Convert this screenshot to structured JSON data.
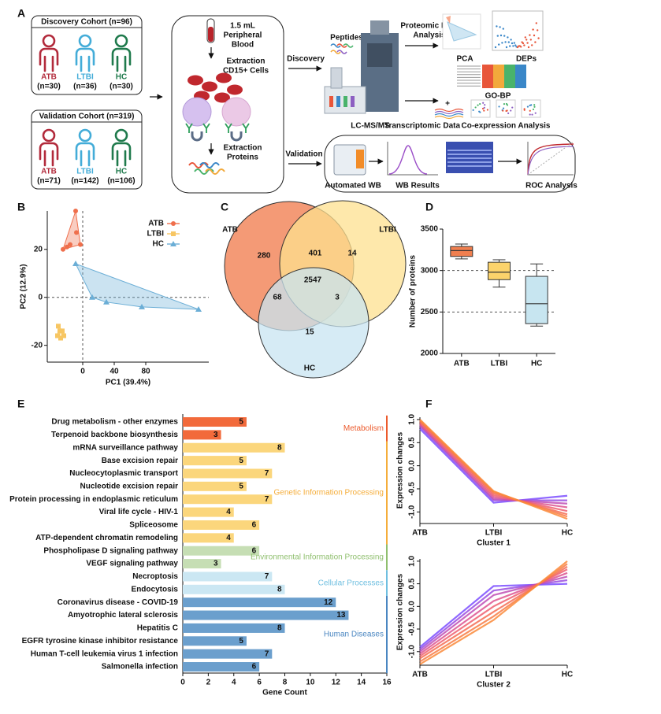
{
  "diagram": {
    "label": "A",
    "discovery_cohort": {
      "title": "Discovery Cohort (n=96)",
      "groups": [
        {
          "name": "ATB",
          "n": "(n=30)"
        },
        {
          "name": "LTBI",
          "n": "(n=36)"
        },
        {
          "name": "HC",
          "n": "(n=30)"
        }
      ]
    },
    "validation_cohort": {
      "title": "Validation Cohort (n=319)",
      "groups": [
        {
          "name": "ATB",
          "n": "(n=71)"
        },
        {
          "name": "LTBI",
          "n": "(n=142)"
        },
        {
          "name": "HC",
          "n": "(n=106)"
        }
      ]
    },
    "workflow": {
      "blood": [
        "1.5 mL",
        "Peripheral",
        "Blood"
      ],
      "cells": [
        "Extraction",
        "CD15+ Cells"
      ],
      "proteins": [
        "Extraction",
        "Proteins"
      ]
    },
    "discovery_label": "Discovery",
    "validation_label": "Validation",
    "discovery": {
      "peptides": "Peptides",
      "instrument": "LC-MS/MS",
      "analysis": [
        "Proteomic Data",
        "Analysis"
      ],
      "pca": "PCA",
      "deps": "DEPs",
      "gobp": "GO-BP",
      "transcriptomic": "Transcriptomic Data",
      "coexpression": "Co-expression Analysis"
    },
    "validation": {
      "wb": "Automated WB",
      "wb_results": "WB Results",
      "roc": "ROC Analysis"
    }
  },
  "chart_data": [
    {
      "type": "scatter",
      "panel": "B",
      "xlabel": "PC1 (39.4%)",
      "ylabel": "PC2 (12.9%)",
      "xlim": [
        -45,
        160
      ],
      "ylim": [
        -27,
        36
      ],
      "xticks": [
        0,
        40,
        80
      ],
      "yticks": [
        20,
        0,
        -20
      ],
      "legend": "top-right",
      "series": [
        {
          "name": "ATB",
          "color": "#ef6f4c",
          "marker": "circle",
          "x": [
            -9,
            -8,
            -3,
            -25,
            -16,
            -20
          ],
          "values": [
            36,
            27,
            22,
            20,
            22,
            21
          ]
        },
        {
          "name": "LTBI",
          "color": "#f7c663",
          "marker": "square",
          "x": [
            -31,
            -29,
            -32,
            -26,
            -24,
            -28
          ],
          "values": [
            -12,
            -14,
            -16,
            -14,
            -16,
            -17
          ]
        },
        {
          "name": "HC",
          "color": "#6baed6",
          "marker": "triangle",
          "x": [
            -9,
            12,
            30,
            75,
            147
          ],
          "values": [
            14,
            0,
            -2,
            -4,
            -5
          ]
        }
      ]
    },
    {
      "type": "venn",
      "panel": "C",
      "sets": [
        {
          "name": "ATB",
          "color": "#f07848"
        },
        {
          "name": "LTBI",
          "color": "#fde08f"
        },
        {
          "name": "HC",
          "color": "#c8e4f1"
        }
      ],
      "regions": [
        280,
        401,
        14,
        2547,
        68,
        3,
        15
      ]
    },
    {
      "type": "box",
      "panel": "D",
      "ylabel": "Number of proteins",
      "categories": [
        "ATB",
        "LTBI",
        "HC"
      ],
      "colors": [
        "#f07f4f",
        "#fcd36b",
        "#c7e5f0"
      ],
      "min": [
        3140,
        2800,
        2330
      ],
      "q1": [
        3170,
        2890,
        2360
      ],
      "median": [
        3240,
        2980,
        2600
      ],
      "q3": [
        3290,
        3100,
        2930
      ],
      "max": [
        3320,
        3130,
        3080
      ],
      "ylim": [
        2000,
        3500
      ],
      "yticks": [
        2000,
        2500,
        3000,
        3500
      ],
      "hlines": [
        3000,
        2500
      ]
    },
    {
      "type": "hbar",
      "panel": "E",
      "xlabel": "Gene Count",
      "xlim": [
        0,
        16
      ],
      "xticks": [
        0,
        2,
        4,
        6,
        8,
        10,
        12,
        14,
        16
      ],
      "groups": [
        {
          "name": "Metabolism",
          "color": "#f26a3b",
          "text_color": "#ec5a2c",
          "categories": [
            "Drug metabolism - other enzymes",
            "Terpenoid backbone biosynthesis"
          ],
          "values": [
            5,
            3
          ]
        },
        {
          "name": "Genetic Information Processing",
          "color": "#fbd67c",
          "text_color": "#f5ad3a",
          "categories": [
            "mRNA surveillance pathway",
            "Base excision repair",
            "Nucleocytoplasmic transport",
            "Nucleotide excision repair",
            "Protein processing in endoplasmic reticulum",
            "Viral life cycle - HIV-1",
            "Spliceosome",
            "ATP-dependent chromatin remodeling"
          ],
          "values": [
            8,
            5,
            7,
            5,
            7,
            4,
            6,
            4
          ]
        },
        {
          "name": "Environmental Information Processing",
          "color": "#c6deb4",
          "text_color": "#8fbf6e",
          "categories": [
            "Phospholipase D signaling pathway",
            "VEGF signaling pathway"
          ],
          "values": [
            6,
            3
          ]
        },
        {
          "name": "Cellular Processes",
          "color": "#cbe7f3",
          "text_color": "#6fbfe0",
          "categories": [
            "Necroptosis",
            "Endocytosis"
          ],
          "values": [
            7,
            8
          ]
        },
        {
          "name": "Human Diseases",
          "color": "#6b9fcd",
          "text_color": "#4a86c1",
          "categories": [
            "Coronavirus disease - COVID-19",
            "Amyotrophic lateral sclerosis",
            "Hepatitis C",
            "EGFR tyrosine kinase inhibitor resistance",
            "Human T-cell leukemia virus 1 infection",
            "Salmonella infection"
          ],
          "values": [
            12,
            13,
            8,
            5,
            7,
            6
          ]
        }
      ]
    },
    {
      "type": "line",
      "panel": "F",
      "xlabel": "Cluster 1",
      "ylabel": "Expression changes",
      "categories": [
        "ATB",
        "LTBI",
        "HC"
      ],
      "ylim": [
        -1.25,
        1.05
      ],
      "yticks": [
        {
          "value": 1,
          "label": "1.0"
        },
        0.5,
        {
          "value": 0,
          "label": "0.0"
        },
        -0.5,
        {
          "value": -1,
          "label": "-1.0"
        }
      ],
      "series": [
        {
          "color": "#7b4dff",
          "values": [
            0.8,
            -0.8,
            -0.65
          ]
        },
        {
          "color": "#9a4ee0",
          "values": [
            0.85,
            -0.75,
            -0.75
          ]
        },
        {
          "color": "#c04fb5",
          "values": [
            0.88,
            -0.72,
            -0.82
          ]
        },
        {
          "color": "#dd5590",
          "values": [
            0.9,
            -0.68,
            -0.9
          ]
        },
        {
          "color": "#ef5f70",
          "values": [
            0.93,
            -0.64,
            -0.98
          ]
        },
        {
          "color": "#f56d55",
          "values": [
            0.96,
            -0.6,
            -1.05
          ]
        },
        {
          "color": "#f87c45",
          "values": [
            0.98,
            -0.57,
            -1.1
          ]
        },
        {
          "color": "#fa8a3a",
          "values": [
            1.0,
            -0.55,
            -1.15
          ]
        }
      ]
    },
    {
      "type": "line",
      "xlabel": "Cluster 2",
      "ylabel": "Expression changes",
      "categories": [
        "ATB",
        "LTBI",
        "HC"
      ],
      "ylim": [
        -1.3,
        1.05
      ],
      "yticks": [
        {
          "value": 1,
          "label": "1.0"
        },
        0.5,
        {
          "value": 0,
          "label": "0.0"
        },
        -0.5,
        {
          "value": -1,
          "label": "-1.0"
        }
      ],
      "series": [
        {
          "color": "#7b4dff",
          "values": [
            -0.9,
            0.45,
            0.5
          ]
        },
        {
          "color": "#9a4ee0",
          "values": [
            -0.95,
            0.35,
            0.58
          ]
        },
        {
          "color": "#c04fb5",
          "values": [
            -1.0,
            0.25,
            0.66
          ]
        },
        {
          "color": "#dd5590",
          "values": [
            -1.05,
            0.12,
            0.74
          ]
        },
        {
          "color": "#ef5f70",
          "values": [
            -1.1,
            0.0,
            0.82
          ]
        },
        {
          "color": "#f56d55",
          "values": [
            -1.15,
            -0.12,
            0.88
          ]
        },
        {
          "color": "#f87c45",
          "values": [
            -1.22,
            -0.22,
            0.94
          ]
        },
        {
          "color": "#fa8a3a",
          "values": [
            -1.28,
            -0.3,
            1.0
          ]
        }
      ]
    }
  ]
}
